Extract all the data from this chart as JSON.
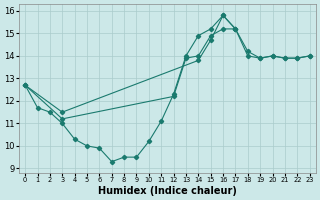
{
  "xlabel": "Humidex (Indice chaleur)",
  "background_color": "#cce8e8",
  "grid_color": "#aacccc",
  "line_color": "#1a7a6e",
  "xlim": [
    -0.5,
    23.5
  ],
  "ylim": [
    8.8,
    16.3
  ],
  "xticks": [
    0,
    1,
    2,
    3,
    4,
    5,
    6,
    7,
    8,
    9,
    10,
    11,
    12,
    13,
    14,
    15,
    16,
    17,
    18,
    19,
    20,
    21,
    22,
    23
  ],
  "yticks": [
    9,
    10,
    11,
    12,
    13,
    14,
    15,
    16
  ],
  "series": [
    {
      "x": [
        0,
        1,
        2,
        3,
        4,
        5,
        6,
        7,
        8,
        9,
        10,
        11,
        12,
        13,
        14,
        15,
        16,
        17
      ],
      "y": [
        12.7,
        11.7,
        11.5,
        11.0,
        10.3,
        10.0,
        9.9,
        9.3,
        9.5,
        9.5,
        10.2,
        11.1,
        12.3,
        14.0,
        14.9,
        15.2,
        15.8,
        15.2
      ]
    },
    {
      "x": [
        0,
        3,
        14,
        15,
        16,
        17,
        18,
        19,
        20,
        21,
        22,
        23
      ],
      "y": [
        12.7,
        11.5,
        13.8,
        14.7,
        15.8,
        15.2,
        14.0,
        13.9,
        14.0,
        13.9,
        13.9,
        14.0
      ]
    },
    {
      "x": [
        0,
        3,
        12,
        13,
        14,
        15,
        16,
        17,
        18,
        19,
        20,
        21,
        22,
        23
      ],
      "y": [
        12.7,
        11.2,
        12.2,
        13.9,
        14.0,
        14.9,
        15.2,
        15.2,
        14.2,
        13.9,
        14.0,
        13.9,
        13.9,
        14.0
      ]
    }
  ]
}
